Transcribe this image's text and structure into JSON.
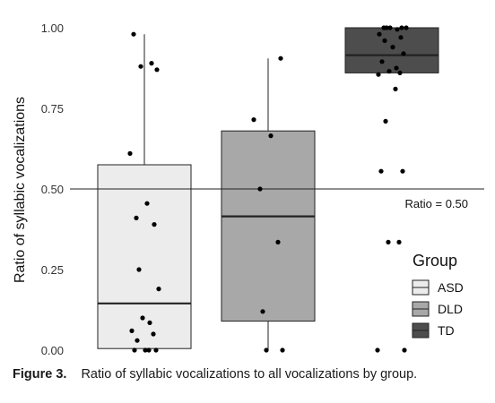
{
  "chart_data": {
    "type": "boxplot",
    "ylabel": "Ratio of syllabic vocalizations",
    "ylim": [
      0,
      1
    ],
    "yticks": [
      "0.00",
      "0.25",
      "0.50",
      "0.75",
      "1.00"
    ],
    "reference_line": {
      "y": 0.5,
      "label": "Ratio = 0.50"
    },
    "legend": {
      "title": "Group",
      "placement": "right",
      "entries": [
        "ASD",
        "DLD",
        "TD"
      ]
    },
    "groups": [
      {
        "name": "ASD",
        "color": "#ececec",
        "box": {
          "q1": 0.005,
          "median": 0.145,
          "q3": 0.575,
          "whisker_low": 0.0,
          "whisker_high": 0.98
        },
        "points": [
          0.98,
          0.89,
          0.88,
          0.87,
          0.61,
          0.455,
          0.41,
          0.39,
          0.25,
          0.19,
          0.1,
          0.085,
          0.06,
          0.05,
          0.03,
          0.0,
          0.0,
          0.0,
          0.0
        ]
      },
      {
        "name": "DLD",
        "color": "#a8a8a8",
        "box": {
          "q1": 0.09,
          "median": 0.415,
          "q3": 0.68,
          "whisker_low": 0.0,
          "whisker_high": 0.905
        },
        "points": [
          0.905,
          0.715,
          0.665,
          0.5,
          0.335,
          0.12,
          0.0,
          0.0
        ]
      },
      {
        "name": "TD",
        "color": "#4d4d4d",
        "box": {
          "q1": 0.86,
          "median": 0.915,
          "q3": 1.0,
          "whisker_low": 0.86,
          "whisker_high": 1.0
        },
        "points": [
          1.0,
          1.0,
          1.0,
          1.0,
          1.0,
          0.995,
          0.98,
          0.97,
          0.96,
          0.94,
          0.92,
          0.895,
          0.875,
          0.865,
          0.86,
          0.855,
          0.81,
          0.71,
          0.555,
          0.555,
          0.335,
          0.335,
          0.0,
          0.0
        ]
      }
    ]
  },
  "caption": {
    "label": "Figure 3.",
    "text": "Ratio of syllabic vocalizations to all vocalizations by group."
  }
}
